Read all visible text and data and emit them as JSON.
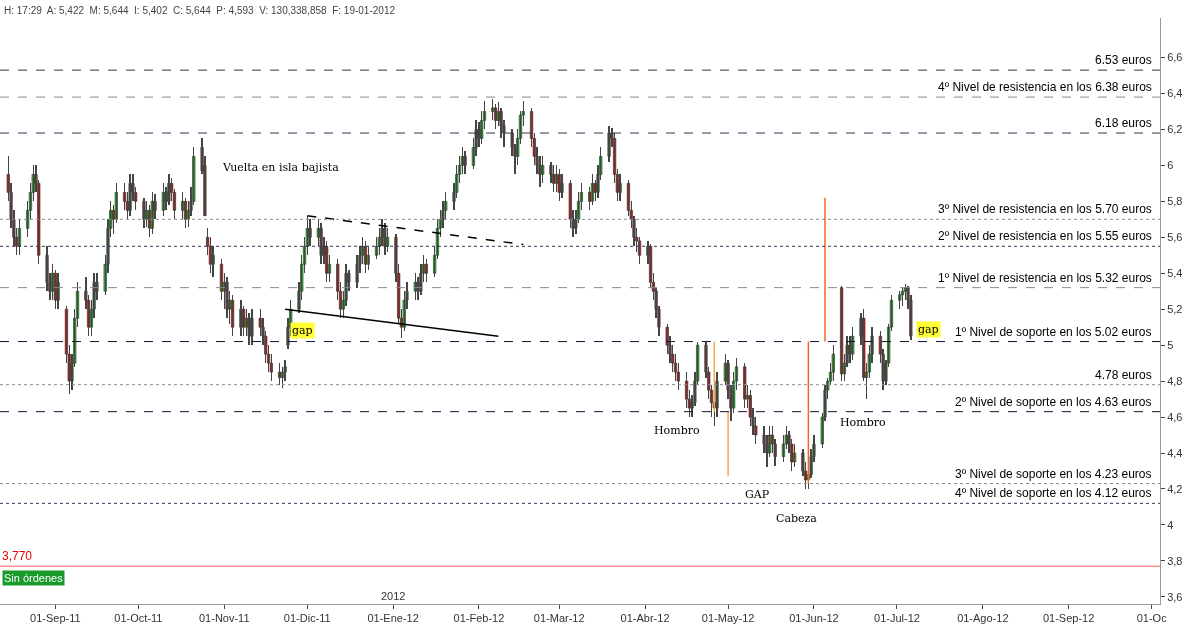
{
  "chart_data": {
    "type": "candlestick",
    "x": [
      "2011-08-15",
      "2011-08-16",
      "2011-08-17",
      "2011-08-18",
      "2011-08-19",
      "2011-08-22",
      "2011-08-23",
      "2011-08-24",
      "2011-08-25",
      "2011-08-26",
      "2011-08-29",
      "2011-08-30",
      "2011-08-31",
      "2011-09-01",
      "2011-09-02",
      "2011-09-05",
      "2011-09-06",
      "2011-09-07",
      "2011-09-08",
      "2011-09-09",
      "2011-09-12",
      "2011-09-13",
      "2011-09-14",
      "2011-09-15",
      "2011-09-16",
      "2011-09-19",
      "2011-09-20",
      "2011-09-21",
      "2011-09-22",
      "2011-09-23",
      "2011-09-26",
      "2011-09-27",
      "2011-09-28",
      "2011-09-29",
      "2011-09-30",
      "2011-10-03",
      "2011-10-04",
      "2011-10-05",
      "2011-10-06",
      "2011-10-07",
      "2011-10-10",
      "2011-10-11",
      "2011-10-12",
      "2011-10-13",
      "2011-10-14",
      "2011-10-17",
      "2011-10-18",
      "2011-10-19",
      "2011-10-20",
      "2011-10-21",
      "2011-10-24",
      "2011-10-25",
      "2011-10-26",
      "2011-10-27",
      "2011-10-28",
      "2011-10-31",
      "2011-11-01",
      "2011-11-02",
      "2011-11-03",
      "2011-11-04",
      "2011-11-07",
      "2011-11-08",
      "2011-11-09",
      "2011-11-10",
      "2011-11-11",
      "2011-11-14",
      "2011-11-15",
      "2011-11-16",
      "2011-11-17",
      "2011-11-18",
      "2011-11-21",
      "2011-11-22",
      "2011-11-23",
      "2011-11-24",
      "2011-11-25",
      "2011-11-28",
      "2011-11-29",
      "2011-11-30",
      "2011-12-01",
      "2011-12-02",
      "2011-12-05",
      "2011-12-06",
      "2011-12-07",
      "2011-12-08",
      "2011-12-09",
      "2011-12-12",
      "2011-12-13",
      "2011-12-14",
      "2011-12-15",
      "2011-12-16",
      "2011-12-19",
      "2011-12-20",
      "2011-12-21",
      "2011-12-22",
      "2011-12-23",
      "2011-12-26",
      "2011-12-27",
      "2011-12-28",
      "2011-12-29",
      "2011-12-30",
      "2012-01-02",
      "2012-01-03",
      "2012-01-04",
      "2012-01-05",
      "2012-01-06",
      "2012-01-09",
      "2012-01-10",
      "2012-01-11",
      "2012-01-12",
      "2012-01-13",
      "2012-01-16",
      "2012-01-17",
      "2012-01-18",
      "2012-01-19",
      "2012-01-20",
      "2012-01-23",
      "2012-01-24",
      "2012-01-25",
      "2012-01-26",
      "2012-01-27",
      "2012-01-30",
      "2012-01-31",
      "2012-02-01",
      "2012-02-02",
      "2012-02-03",
      "2012-02-06",
      "2012-02-07",
      "2012-02-08",
      "2012-02-09",
      "2012-02-10",
      "2012-02-13",
      "2012-02-14",
      "2012-02-15",
      "2012-02-16",
      "2012-02-17",
      "2012-02-20",
      "2012-02-21",
      "2012-02-22",
      "2012-02-23",
      "2012-02-24",
      "2012-02-27",
      "2012-02-28",
      "2012-02-29",
      "2012-03-01",
      "2012-03-02",
      "2012-03-05",
      "2012-03-06",
      "2012-03-07",
      "2012-03-08",
      "2012-03-09",
      "2012-03-12",
      "2012-03-13",
      "2012-03-14",
      "2012-03-15",
      "2012-03-16",
      "2012-03-19",
      "2012-03-20",
      "2012-03-21",
      "2012-03-22",
      "2012-03-23",
      "2012-03-26",
      "2012-03-27",
      "2012-03-28",
      "2012-03-29",
      "2012-03-30",
      "2012-04-02",
      "2012-04-03",
      "2012-04-04",
      "2012-04-05",
      "2012-04-06",
      "2012-04-09",
      "2012-04-10",
      "2012-04-11",
      "2012-04-12",
      "2012-04-13",
      "2012-04-16",
      "2012-04-17",
      "2012-04-18",
      "2012-04-19",
      "2012-04-20",
      "2012-04-23",
      "2012-04-24",
      "2012-04-25",
      "2012-04-26",
      "2012-04-27",
      "2012-04-30",
      "2012-05-01",
      "2012-05-02",
      "2012-05-03",
      "2012-05-04",
      "2012-05-07",
      "2012-05-08",
      "2012-05-09",
      "2012-05-10",
      "2012-05-11",
      "2012-05-14",
      "2012-05-15",
      "2012-05-16",
      "2012-05-17",
      "2012-05-18",
      "2012-05-21",
      "2012-05-22",
      "2012-05-23",
      "2012-05-24",
      "2012-05-25",
      "2012-05-28",
      "2012-05-29",
      "2012-05-30",
      "2012-05-31",
      "2012-06-01",
      "2012-06-04",
      "2012-06-05",
      "2012-06-06",
      "2012-06-07",
      "2012-06-08",
      "2012-06-11",
      "2012-06-12",
      "2012-06-13",
      "2012-06-14",
      "2012-06-15",
      "2012-06-18",
      "2012-06-19",
      "2012-06-20",
      "2012-06-21",
      "2012-06-22",
      "2012-06-25",
      "2012-06-26",
      "2012-06-27",
      "2012-06-28",
      "2012-06-29",
      "2012-07-02",
      "2012-07-03",
      "2012-07-04",
      "2012-07-05",
      "2012-07-06"
    ],
    "ohlc": [
      [
        5.95,
        6.05,
        5.8,
        5.85
      ],
      [
        5.85,
        5.9,
        5.65,
        5.7
      ],
      [
        5.7,
        5.75,
        5.55,
        5.6
      ],
      [
        5.6,
        5.65,
        5.5,
        5.55
      ],
      [
        5.55,
        5.7,
        5.5,
        5.65
      ],
      [
        5.65,
        5.8,
        5.6,
        5.75
      ],
      [
        5.75,
        5.9,
        5.7,
        5.85
      ],
      [
        5.85,
        6.0,
        5.8,
        5.95
      ],
      [
        5.95,
        6.0,
        5.85,
        5.9
      ],
      [
        5.9,
        5.92,
        5.45,
        5.5
      ],
      [
        5.5,
        5.55,
        5.3,
        5.35
      ],
      [
        5.35,
        5.4,
        5.25,
        5.3
      ],
      [
        5.3,
        5.45,
        5.25,
        5.4
      ],
      [
        5.4,
        5.42,
        5.2,
        5.25
      ],
      [
        5.25,
        5.4,
        5.2,
        5.35
      ],
      [
        5.2,
        5.22,
        4.9,
        4.95
      ],
      [
        4.95,
        5.0,
        4.73,
        4.8
      ],
      [
        4.8,
        4.95,
        4.75,
        4.9
      ],
      [
        4.9,
        5.2,
        4.88,
        5.15
      ],
      [
        5.15,
        5.35,
        5.1,
        5.3
      ],
      [
        5.3,
        5.38,
        5.2,
        5.25
      ],
      [
        5.25,
        5.28,
        5.05,
        5.1
      ],
      [
        5.1,
        5.25,
        5.05,
        5.2
      ],
      [
        5.2,
        5.4,
        5.15,
        5.35
      ],
      [
        5.35,
        5.4,
        5.25,
        5.3
      ],
      [
        5.3,
        5.5,
        5.28,
        5.45
      ],
      [
        5.45,
        5.7,
        5.4,
        5.65
      ],
      [
        5.65,
        5.8,
        5.6,
        5.75
      ],
      [
        5.75,
        5.78,
        5.62,
        5.7
      ],
      [
        5.7,
        5.9,
        5.68,
        5.85
      ],
      [
        5.85,
        5.9,
        5.75,
        5.8
      ],
      [
        5.8,
        5.85,
        5.7,
        5.75
      ],
      [
        5.75,
        5.95,
        5.72,
        5.9
      ],
      [
        5.9,
        5.95,
        5.8,
        5.85
      ],
      [
        5.85,
        5.88,
        5.75,
        5.8
      ],
      [
        5.8,
        5.82,
        5.65,
        5.7
      ],
      [
        5.7,
        5.8,
        5.66,
        5.75
      ],
      [
        5.75,
        5.78,
        5.6,
        5.65
      ],
      [
        5.65,
        5.85,
        5.62,
        5.8
      ],
      [
        5.8,
        5.84,
        5.7,
        5.75
      ],
      [
        5.75,
        5.9,
        5.72,
        5.85
      ],
      [
        5.85,
        5.88,
        5.75,
        5.8
      ],
      [
        5.8,
        5.95,
        5.78,
        5.9
      ],
      [
        5.9,
        5.93,
        5.8,
        5.85
      ],
      [
        5.85,
        5.87,
        5.7,
        5.75
      ],
      [
        5.75,
        5.85,
        5.7,
        5.8
      ],
      [
        5.8,
        5.82,
        5.65,
        5.7
      ],
      [
        5.7,
        5.8,
        5.66,
        5.75
      ],
      [
        5.75,
        5.88,
        5.72,
        5.8
      ],
      [
        5.8,
        6.1,
        5.78,
        6.05
      ],
      [
        6.1,
        6.15,
        5.95,
        5.97
      ],
      [
        6.0,
        6.05,
        5.72,
        5.72
      ],
      [
        5.6,
        5.65,
        5.5,
        5.55
      ],
      [
        5.55,
        5.6,
        5.4,
        5.45
      ],
      [
        5.45,
        5.55,
        5.38,
        5.5
      ],
      [
        5.45,
        5.48,
        5.25,
        5.3
      ],
      [
        5.3,
        5.4,
        5.2,
        5.35
      ],
      [
        5.35,
        5.38,
        5.15,
        5.2
      ],
      [
        5.2,
        5.3,
        5.12,
        5.25
      ],
      [
        5.25,
        5.28,
        5.05,
        5.1
      ],
      [
        5.1,
        5.25,
        5.05,
        5.2
      ],
      [
        5.2,
        5.22,
        5.05,
        5.1
      ],
      [
        5.1,
        5.2,
        5.05,
        5.15
      ],
      [
        5.15,
        5.18,
        5.0,
        5.05
      ],
      [
        5.05,
        5.2,
        5.0,
        5.15
      ],
      [
        5.15,
        5.2,
        5.05,
        5.1
      ],
      [
        5.1,
        5.15,
        5.0,
        5.05
      ],
      [
        5.05,
        5.08,
        4.9,
        4.95
      ],
      [
        4.95,
        5.0,
        4.85,
        4.9
      ],
      [
        4.9,
        4.95,
        4.8,
        4.85
      ],
      [
        4.85,
        4.9,
        4.78,
        4.82
      ],
      [
        4.82,
        4.88,
        4.76,
        4.85
      ],
      [
        4.85,
        4.92,
        4.8,
        4.88
      ],
      [
        5.0,
        5.15,
        4.98,
        5.1
      ],
      [
        5.1,
        5.25,
        5.05,
        5.2
      ],
      [
        5.2,
        5.35,
        5.18,
        5.3
      ],
      [
        5.3,
        5.5,
        5.25,
        5.45
      ],
      [
        5.45,
        5.6,
        5.4,
        5.55
      ],
      [
        5.55,
        5.72,
        5.5,
        5.65
      ],
      [
        5.65,
        5.7,
        5.55,
        5.6
      ],
      [
        5.6,
        5.7,
        5.55,
        5.65
      ],
      [
        5.65,
        5.68,
        5.45,
        5.5
      ],
      [
        5.5,
        5.6,
        5.45,
        5.55
      ],
      [
        5.55,
        5.58,
        5.35,
        5.4
      ],
      [
        5.4,
        5.5,
        5.35,
        5.45
      ],
      [
        5.45,
        5.48,
        5.25,
        5.3
      ],
      [
        5.3,
        5.35,
        5.15,
        5.2
      ],
      [
        5.2,
        5.3,
        5.15,
        5.25
      ],
      [
        5.25,
        5.45,
        5.22,
        5.4
      ],
      [
        5.4,
        5.42,
        5.3,
        5.35
      ],
      [
        5.35,
        5.5,
        5.32,
        5.45
      ],
      [
        5.45,
        5.55,
        5.4,
        5.5
      ],
      [
        5.5,
        5.6,
        5.45,
        5.55
      ],
      [
        5.55,
        5.58,
        5.4,
        5.45
      ],
      [
        5.45,
        5.55,
        5.42,
        5.5
      ],
      [
        5.5,
        5.6,
        5.48,
        5.55
      ],
      [
        5.55,
        5.65,
        5.5,
        5.6
      ],
      [
        5.6,
        5.7,
        5.55,
        5.65
      ],
      [
        5.65,
        5.68,
        5.5,
        5.55
      ],
      [
        5.55,
        5.65,
        5.52,
        5.6
      ],
      [
        5.6,
        5.62,
        5.35,
        5.4
      ],
      [
        5.4,
        5.45,
        5.12,
        5.15
      ],
      [
        5.15,
        5.2,
        5.04,
        5.1
      ],
      [
        5.1,
        5.3,
        5.08,
        5.25
      ],
      [
        5.25,
        5.35,
        5.2,
        5.3
      ],
      [
        5.3,
        5.4,
        5.25,
        5.35
      ],
      [
        5.35,
        5.38,
        5.25,
        5.3
      ],
      [
        5.3,
        5.45,
        5.28,
        5.4
      ],
      [
        5.4,
        5.5,
        5.35,
        5.45
      ],
      [
        5.45,
        5.48,
        5.35,
        5.4
      ],
      [
        5.4,
        5.55,
        5.38,
        5.5
      ],
      [
        5.5,
        5.7,
        5.48,
        5.65
      ],
      [
        5.65,
        5.75,
        5.6,
        5.7
      ],
      [
        5.7,
        5.8,
        5.65,
        5.75
      ],
      [
        5.75,
        5.85,
        5.7,
        5.8
      ],
      [
        5.8,
        5.9,
        5.75,
        5.85
      ],
      [
        5.85,
        6.0,
        5.82,
        5.95
      ],
      [
        5.95,
        6.05,
        5.9,
        6.0
      ],
      [
        6.0,
        6.1,
        5.95,
        6.05
      ],
      [
        6.05,
        6.08,
        5.95,
        6.0
      ],
      [
        6.0,
        6.15,
        5.98,
        6.1
      ],
      [
        6.1,
        6.25,
        6.05,
        6.2
      ],
      [
        6.2,
        6.24,
        6.1,
        6.15
      ],
      [
        6.15,
        6.3,
        6.12,
        6.25
      ],
      [
        6.25,
        6.36,
        6.2,
        6.3
      ],
      [
        6.3,
        6.37,
        6.25,
        6.32
      ],
      [
        6.32,
        6.34,
        6.2,
        6.25
      ],
      [
        6.25,
        6.35,
        6.22,
        6.3
      ],
      [
        6.3,
        6.32,
        6.15,
        6.22
      ],
      [
        6.22,
        6.25,
        6.1,
        6.18
      ],
      [
        6.18,
        6.2,
        6.05,
        6.1
      ],
      [
        6.1,
        6.12,
        5.95,
        6.05
      ],
      [
        6.05,
        6.2,
        6.0,
        6.15
      ],
      [
        6.15,
        6.3,
        6.12,
        6.28
      ],
      [
        6.28,
        6.36,
        6.22,
        6.3
      ],
      [
        6.3,
        6.32,
        6.1,
        6.15
      ],
      [
        6.15,
        6.18,
        6.0,
        6.05
      ],
      [
        6.05,
        6.1,
        5.95,
        6.0
      ],
      [
        6.0,
        6.05,
        5.88,
        5.95
      ],
      [
        5.95,
        6.05,
        5.9,
        6.0
      ],
      [
        6.0,
        6.02,
        5.9,
        5.95
      ],
      [
        5.95,
        6.0,
        5.85,
        5.9
      ],
      [
        5.9,
        6.0,
        5.85,
        5.95
      ],
      [
        5.95,
        5.98,
        5.8,
        5.85
      ],
      [
        5.85,
        5.95,
        5.82,
        5.9
      ],
      [
        5.9,
        5.92,
        5.65,
        5.7
      ],
      [
        5.7,
        5.75,
        5.6,
        5.65
      ],
      [
        5.65,
        5.75,
        5.62,
        5.7
      ],
      [
        5.7,
        5.85,
        5.68,
        5.8
      ],
      [
        5.8,
        5.9,
        5.75,
        5.85
      ],
      [
        5.85,
        5.88,
        5.75,
        5.8
      ],
      [
        5.8,
        5.95,
        5.78,
        5.9
      ],
      [
        5.9,
        5.92,
        5.8,
        5.85
      ],
      [
        5.85,
        6.0,
        5.82,
        5.95
      ],
      [
        5.95,
        6.1,
        5.92,
        6.05
      ],
      [
        6.05,
        6.22,
        6.02,
        6.18
      ],
      [
        6.18,
        6.21,
        6.1,
        6.15
      ],
      [
        6.15,
        6.18,
        5.9,
        5.95
      ],
      [
        5.95,
        5.98,
        5.8,
        5.85
      ],
      [
        5.85,
        5.95,
        5.8,
        5.9
      ],
      [
        5.9,
        5.92,
        5.72,
        5.75
      ],
      [
        5.75,
        5.8,
        5.65,
        5.7
      ],
      [
        5.7,
        5.72,
        5.55,
        5.6
      ],
      [
        5.6,
        5.65,
        5.52,
        5.58
      ],
      [
        5.58,
        5.6,
        5.45,
        5.5
      ],
      [
        5.5,
        5.58,
        5.45,
        5.55
      ],
      [
        5.55,
        5.56,
        5.32,
        5.35
      ],
      [
        5.35,
        5.4,
        5.25,
        5.3
      ],
      [
        5.3,
        5.32,
        5.15,
        5.2
      ],
      [
        5.2,
        5.22,
        5.05,
        5.1
      ],
      [
        5.1,
        5.12,
        4.95,
        5.0
      ],
      [
        5.0,
        5.05,
        4.9,
        4.95
      ],
      [
        4.95,
        5.0,
        4.85,
        4.9
      ],
      [
        4.9,
        4.95,
        4.8,
        4.85
      ],
      [
        4.85,
        4.9,
        4.75,
        4.8
      ],
      [
        4.8,
        4.85,
        4.65,
        4.7
      ],
      [
        4.7,
        4.75,
        4.6,
        4.65
      ],
      [
        4.65,
        4.72,
        4.6,
        4.68
      ],
      [
        4.68,
        4.85,
        4.66,
        4.8
      ],
      [
        4.8,
        5.02,
        4.78,
        5.0
      ],
      [
        5.0,
        5.02,
        4.82,
        4.85
      ],
      [
        4.85,
        4.88,
        4.7,
        4.75
      ],
      [
        4.75,
        4.78,
        4.6,
        4.68
      ],
      [
        4.68,
        4.72,
        4.55,
        4.65
      ],
      [
        4.65,
        4.85,
        4.6,
        4.8
      ],
      [
        4.8,
        4.95,
        4.78,
        4.9
      ],
      [
        4.9,
        4.92,
        4.7,
        4.75
      ],
      [
        4.75,
        4.78,
        4.58,
        4.65
      ],
      [
        4.65,
        4.85,
        4.62,
        4.8
      ],
      [
        4.8,
        4.93,
        4.75,
        4.88
      ],
      [
        4.88,
        4.9,
        4.65,
        4.7
      ],
      [
        4.7,
        4.78,
        4.65,
        4.72
      ],
      [
        4.72,
        4.75,
        4.55,
        4.6
      ],
      [
        4.6,
        4.65,
        4.5,
        4.55
      ],
      [
        4.55,
        4.6,
        4.45,
        4.5
      ],
      [
        4.5,
        4.55,
        4.4,
        4.45
      ],
      [
        4.45,
        4.5,
        4.32,
        4.4
      ],
      [
        4.4,
        4.55,
        4.38,
        4.5
      ],
      [
        4.5,
        4.55,
        4.4,
        4.45
      ],
      [
        4.45,
        4.48,
        4.33,
        4.38
      ],
      [
        4.38,
        4.5,
        4.35,
        4.45
      ],
      [
        4.45,
        4.55,
        4.42,
        4.5
      ],
      [
        4.5,
        4.52,
        4.4,
        4.45
      ],
      [
        4.45,
        4.48,
        4.3,
        4.35
      ],
      [
        4.35,
        4.45,
        4.32,
        4.4
      ],
      [
        4.4,
        4.42,
        4.27,
        4.3
      ],
      [
        4.3,
        4.35,
        4.2,
        4.25
      ],
      [
        4.25,
        4.3,
        4.2,
        4.28
      ],
      [
        4.28,
        4.42,
        4.26,
        4.38
      ],
      [
        4.38,
        4.5,
        4.35,
        4.45
      ],
      [
        4.45,
        4.62,
        4.43,
        4.6
      ],
      [
        4.6,
        4.78,
        4.58,
        4.75
      ],
      [
        4.75,
        4.82,
        4.7,
        4.8
      ],
      [
        4.8,
        4.9,
        4.78,
        4.85
      ],
      [
        4.85,
        5.0,
        4.8,
        4.95
      ],
      [
        5.32,
        5.33,
        4.8,
        4.84
      ],
      [
        4.84,
        4.95,
        4.8,
        4.9
      ],
      [
        4.9,
        5.05,
        4.88,
        5.0
      ],
      [
        5.0,
        5.05,
        4.9,
        4.95
      ],
      [
        4.95,
        5.1,
        4.92,
        5.05
      ],
      [
        5.05,
        5.18,
        5.0,
        5.15
      ],
      [
        5.15,
        5.2,
        4.8,
        4.82
      ],
      [
        4.82,
        4.9,
        4.7,
        4.85
      ],
      [
        4.85,
        5.0,
        4.82,
        4.95
      ],
      [
        4.95,
        5.1,
        4.9,
        5.05
      ],
      [
        5.05,
        5.08,
        4.9,
        4.95
      ],
      [
        4.95,
        4.98,
        4.75,
        4.8
      ],
      [
        4.8,
        4.92,
        4.78,
        4.9
      ],
      [
        4.9,
        5.12,
        4.88,
        5.1
      ],
      [
        5.1,
        5.28,
        5.08,
        5.25
      ],
      [
        5.25,
        5.3,
        5.2,
        5.28
      ],
      [
        5.28,
        5.32,
        5.22,
        5.3
      ],
      [
        5.3,
        5.34,
        5.25,
        5.32
      ],
      [
        5.32,
        5.33,
        5.2,
        5.25
      ],
      [
        5.25,
        5.28,
        5.03,
        5.05
      ]
    ],
    "series": [
      {
        "type": "line",
        "x": [
          "2011-11-23",
          "2012-02-08"
        ],
        "values": [
          5.2,
          5.05
        ],
        "color": "#000000",
        "line_style": "solid"
      },
      {
        "type": "line",
        "x": [
          "2011-12-01",
          "2012-02-17"
        ],
        "values": [
          5.72,
          5.56
        ],
        "color": "#000000",
        "line_style": "dashed"
      },
      {
        "type": "line",
        "x": [
          "2012-04-26",
          "2012-04-26"
        ],
        "values": [
          5.02,
          4.63
        ],
        "color": "#f5a84a",
        "line_style": "solid"
      },
      {
        "type": "line",
        "x": [
          "2012-05-01",
          "2012-05-01"
        ],
        "values": [
          4.63,
          4.27
        ],
        "color": "#f5a84a",
        "line_style": "solid"
      },
      {
        "type": "line",
        "x": [
          "2012-05-30",
          "2012-05-30"
        ],
        "values": [
          4.23,
          5.02
        ],
        "color": "#f26522",
        "line_style": "solid"
      },
      {
        "type": "line",
        "x": [
          "2012-06-05",
          "2012-06-05"
        ],
        "values": [
          5.02,
          5.82
        ],
        "color": "#f26522",
        "line_style": "solid"
      }
    ],
    "ref_lines": [
      {
        "axis": "y",
        "value": 6.53,
        "label": "6.53 euros",
        "color": "#333355",
        "line_style": "dashed"
      },
      {
        "axis": "y",
        "value": 6.38,
        "label": "4º Nivel de resistencia en los 6.38 euros",
        "color": "#888899",
        "line_style": "dashed"
      },
      {
        "axis": "y",
        "value": 6.18,
        "label": "6.18 euros",
        "color": "#333355",
        "line_style": "dashed"
      },
      {
        "axis": "y",
        "value": 5.7,
        "label": "3º Nivel de resistencia en los 5.70 euros",
        "color": "#888899",
        "line_style": "dotted"
      },
      {
        "axis": "y",
        "value": 5.55,
        "label": "2º Nivel de resistencia en los 5.55 euros",
        "color": "#333355",
        "line_style": "dotted"
      },
      {
        "axis": "y",
        "value": 5.32,
        "label": "1º Nivel de resistencia en los 5.32 euros",
        "color": "#888899",
        "line_style": "dashed"
      },
      {
        "axis": "y",
        "value": 5.02,
        "label": "1º Nivel de soporte en los 5.02 euros",
        "color": "#111133",
        "line_style": "dashed"
      },
      {
        "axis": "y",
        "value": 4.78,
        "label": "4.78 euros",
        "color": "#888899",
        "line_style": "dotted"
      },
      {
        "axis": "y",
        "value": 4.63,
        "label": "2º Nivel de soporte en los 4.63 euros",
        "color": "#111133",
        "line_style": "dashed"
      },
      {
        "axis": "y",
        "value": 4.23,
        "label": "3º Nivel de soporte en los 4.23 euros",
        "color": "#888899",
        "line_style": "dotted"
      },
      {
        "axis": "y",
        "value": 4.12,
        "label": "4º Nivel de soporte en los 4.12 euros",
        "color": "#333355",
        "line_style": "dotted"
      },
      {
        "axis": "y",
        "value": 3.77,
        "label": "3,770",
        "color": "#ff6060",
        "line_style": "solid"
      }
    ],
    "annotations": [
      "H: 17:29  A: 5,422  M: 5,644  I: 5,402  C: 5,644  P: 4,593  V: 130,338,858  F: 19-01-2012",
      "Sin órdenes",
      "2012",
      "Vuelta en isla bajista",
      "gap",
      "gap",
      "Hombro",
      "Hombro",
      "GAP",
      "Cabeza"
    ],
    "xlim": [
      "2011-08-12",
      "2012-10-04"
    ],
    "xticks": [
      {
        "value": "2011-09-01",
        "label": "01-Sep-11"
      },
      {
        "value": "2011-10-01",
        "label": "01-Oct-11"
      },
      {
        "value": "2011-11-01",
        "label": "01-Nov-11"
      },
      {
        "value": "2011-12-01",
        "label": "01-Dic-11"
      },
      {
        "value": "2012-01-01",
        "label": "01-Ene-12"
      },
      {
        "value": "2012-02-01",
        "label": "01-Feb-12"
      },
      {
        "value": "2012-03-01",
        "label": "01-Mar-12"
      },
      {
        "value": "2012-04-01",
        "label": "01-Abr-12"
      },
      {
        "value": "2012-05-01",
        "label": "01-May-12"
      },
      {
        "value": "2012-06-01",
        "label": "01-Jun-12"
      },
      {
        "value": "2012-07-01",
        "label": "01-Jul-12"
      },
      {
        "value": "2012-08-01",
        "label": "01-Ago-12"
      },
      {
        "value": "2012-09-01",
        "label": "01-Sep-12"
      },
      {
        "value": "2012-10-01",
        "label": "01-Oc"
      }
    ],
    "ylim": [
      3.56,
      6.82
    ],
    "yticks": [
      {
        "value": 3.6,
        "label": "3,6"
      },
      {
        "value": 3.8,
        "label": "3,8"
      },
      {
        "value": 4.0,
        "label": "4"
      },
      {
        "value": 4.2,
        "label": "4,2"
      },
      {
        "value": 4.4,
        "label": "4,4"
      },
      {
        "value": 4.6,
        "label": "4,6"
      },
      {
        "value": 4.8,
        "label": "4,8"
      },
      {
        "value": 5.0,
        "label": "5"
      },
      {
        "value": 5.2,
        "label": "5,2"
      },
      {
        "value": 5.4,
        "label": "5,4"
      },
      {
        "value": 5.6,
        "label": "5,6"
      },
      {
        "value": 5.8,
        "label": "5,8"
      },
      {
        "value": 6.0,
        "label": "6"
      },
      {
        "value": 6.2,
        "label": "6,2"
      },
      {
        "value": 6.4,
        "label": "6,4"
      },
      {
        "value": 6.6,
        "label": "6,6"
      }
    ],
    "grid": false
  }
}
